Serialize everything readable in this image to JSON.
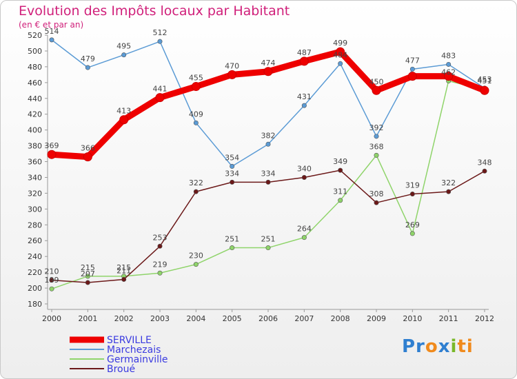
{
  "title": "Evolution des Impôts locaux par Habitant",
  "subtitle": "(en € et par an)",
  "logo": {
    "text": "Proxiti",
    "parts": [
      "Pr",
      "o",
      "x",
      "i",
      "ti"
    ]
  },
  "colors": {
    "title": "#d01f7a",
    "legend_text": "#3a3ae0"
  },
  "chart_data": {
    "type": "line",
    "title": "Evolution des Impôts locaux par Habitant",
    "x": [
      "2000",
      "2001",
      "2002",
      "2003",
      "2004",
      "2005",
      "2006",
      "2007",
      "2008",
      "2009",
      "2010",
      "2011",
      "2012"
    ],
    "ylim": [
      180,
      520
    ],
    "yticks": [
      180,
      200,
      220,
      240,
      260,
      280,
      300,
      320,
      340,
      360,
      380,
      400,
      420,
      440,
      460,
      480,
      500,
      520
    ],
    "grid": false,
    "legend_position": "bottom-left",
    "series": [
      {
        "name": "SERVILLE",
        "color": "#ee0000",
        "values": [
          369,
          366,
          413,
          441,
          455,
          470,
          474,
          487,
          499,
          450,
          468,
          468,
          450
        ],
        "labels": [
          "369",
          "366",
          "413",
          "441",
          "455",
          "470",
          "474",
          "487",
          "499",
          "450",
          "",
          "",
          ""
        ]
      },
      {
        "name": "Marchezais",
        "color": "#5b9bd5",
        "values": [
          514,
          479,
          495,
          512,
          409,
          354,
          382,
          431,
          484,
          392,
          477,
          483,
          453
        ],
        "labels": [
          "514",
          "479",
          "495",
          "512",
          "409",
          "354",
          "382",
          "431",
          "484",
          "392",
          "477",
          "483",
          "453"
        ]
      },
      {
        "name": "Germainville",
        "color": "#8fd46a",
        "values": [
          199,
          215,
          215,
          219,
          230,
          251,
          251,
          264,
          311,
          368,
          269,
          462,
          451
        ],
        "labels": [
          "199",
          "215",
          "215",
          "219",
          "230",
          "251",
          "251",
          "264",
          "311",
          "368",
          "269",
          "462",
          "451"
        ]
      },
      {
        "name": "Broué",
        "color": "#6b1818",
        "values": [
          210,
          207,
          211,
          253,
          322,
          334,
          334,
          340,
          349,
          308,
          319,
          322,
          348
        ],
        "labels": [
          "210",
          "207",
          "211",
          "253",
          "322",
          "334",
          "334",
          "340",
          "349",
          "308",
          "319",
          "322",
          "348"
        ]
      }
    ]
  }
}
